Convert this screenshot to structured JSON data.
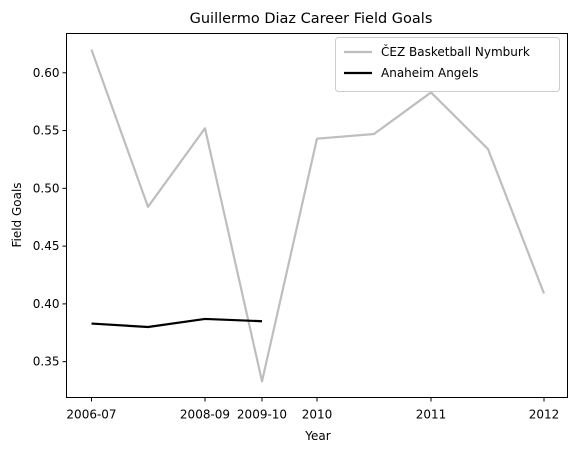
{
  "chart_data": {
    "type": "line",
    "title": "Guillermo Diaz  Career Field Goals",
    "xlabel": "Year",
    "ylabel": "Field Goals",
    "x_tick_labels": [
      "2006-07",
      "2008-09",
      "2009-10",
      "2010",
      "2011",
      "2012"
    ],
    "y_ticks": [
      0.35,
      0.4,
      0.45,
      0.5,
      0.55,
      0.6
    ],
    "y_tick_labels": [
      "0.35",
      "0.40",
      "0.45",
      "0.50",
      "0.55",
      "0.60"
    ],
    "ylim": [
      0.319,
      0.634
    ],
    "grid": false,
    "legend_position": "top-right",
    "series": [
      {
        "name": "ČEZ Basketball Nymburk",
        "color": "#bebebe",
        "x": [
          "2006-07",
          "",
          "2008-09",
          "2009-10",
          "",
          "",
          "2011",
          "",
          ""
        ],
        "values": [
          0.62,
          0.484,
          0.552,
          0.333,
          0.543,
          0.547,
          0.583,
          0.534,
          0.409
        ]
      },
      {
        "name": "Anaheim Angels",
        "color": "#000000",
        "x": [
          "2006-07",
          "",
          "2008-09",
          "2009-10"
        ],
        "values": [
          0.383,
          0.38,
          0.387,
          0.385
        ]
      }
    ]
  }
}
